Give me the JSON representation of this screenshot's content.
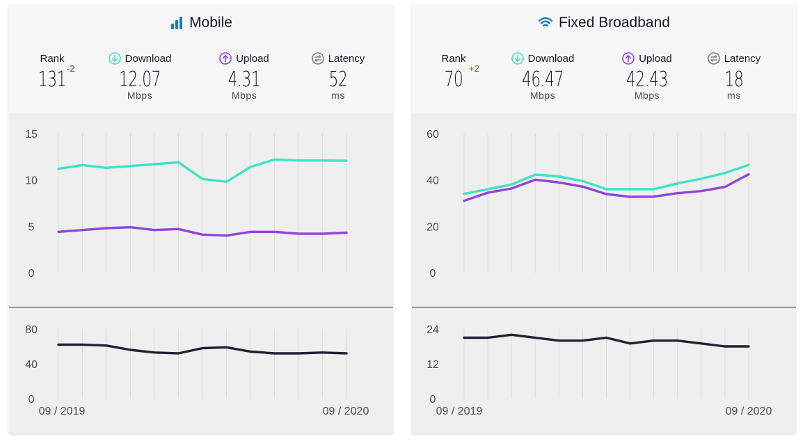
{
  "colors": {
    "download": "#3ee3c4",
    "upload": "#9344d8",
    "latency": "#1f2134",
    "rank_down": "#d2093c",
    "rank_up": "#3e7d1c",
    "grid": "#dcdcdc",
    "tick": "#4a4a58",
    "mobile_icon": "#1a78c2",
    "broadband_icon": "#1a78c2"
  },
  "panels": {
    "mobile": {
      "title": "Mobile",
      "icon": "signal-bars-icon",
      "rank_label": "Rank",
      "rank": "131",
      "rank_change": "-2",
      "download_label": "Download",
      "download_value": "12.07",
      "download_unit": "Mbps",
      "upload_label": "Upload",
      "upload_value": "4.31",
      "upload_unit": "Mbps",
      "latency_label": "Latency",
      "latency_value": "52",
      "latency_unit": "ms",
      "x_start_label": "09 / 2019",
      "x_end_label": "09 / 2020"
    },
    "broadband": {
      "title": "Fixed Broadband",
      "icon": "wifi-icon",
      "rank_label": "Rank",
      "rank": "70",
      "rank_change": "+2",
      "download_label": "Download",
      "download_value": "46.47",
      "download_unit": "Mbps",
      "upload_label": "Upload",
      "upload_value": "42.43",
      "upload_unit": "Mbps",
      "latency_label": "Latency",
      "latency_value": "18",
      "latency_unit": "ms",
      "x_start_label": "09 / 2019",
      "x_end_label": "09 / 2020"
    }
  },
  "chart_data": [
    {
      "id": "mobile-speed",
      "type": "line",
      "x": [
        "09/2019",
        "10/2019",
        "11/2019",
        "12/2019",
        "01/2020",
        "02/2020",
        "03/2020",
        "04/2020",
        "05/2020",
        "06/2020",
        "07/2020",
        "08/2020",
        "09/2020"
      ],
      "ylim": [
        0,
        15
      ],
      "yticks": [
        0,
        5,
        10,
        15
      ],
      "series": [
        {
          "name": "Download",
          "values": [
            11.2,
            11.6,
            11.3,
            11.5,
            11.7,
            11.9,
            10.1,
            9.8,
            11.4,
            12.2,
            12.1,
            12.1,
            12.07
          ]
        },
        {
          "name": "Upload",
          "values": [
            4.4,
            4.6,
            4.8,
            4.9,
            4.6,
            4.7,
            4.1,
            4.0,
            4.4,
            4.4,
            4.2,
            4.2,
            4.31
          ]
        }
      ]
    },
    {
      "id": "mobile-latency",
      "type": "line",
      "x": [
        "09/2019",
        "10/2019",
        "11/2019",
        "12/2019",
        "01/2020",
        "02/2020",
        "03/2020",
        "04/2020",
        "05/2020",
        "06/2020",
        "07/2020",
        "08/2020",
        "09/2020"
      ],
      "ylim": [
        0,
        80
      ],
      "yticks": [
        0,
        40,
        80
      ],
      "series": [
        {
          "name": "Latency",
          "values": [
            62,
            62,
            61,
            56,
            53,
            52,
            58,
            59,
            54,
            52,
            52,
            53,
            52
          ]
        }
      ]
    },
    {
      "id": "broadband-speed",
      "type": "line",
      "x": [
        "09/2019",
        "10/2019",
        "11/2019",
        "12/2019",
        "01/2020",
        "02/2020",
        "03/2020",
        "04/2020",
        "05/2020",
        "06/2020",
        "07/2020",
        "08/2020",
        "09/2020"
      ],
      "ylim": [
        0,
        60
      ],
      "yticks": [
        0,
        20,
        40,
        60
      ],
      "series": [
        {
          "name": "Download",
          "values": [
            34,
            36,
            38,
            42.3,
            41.5,
            39.5,
            36,
            36,
            36,
            38.5,
            40.5,
            43,
            46.47
          ]
        },
        {
          "name": "Upload",
          "values": [
            31,
            34.5,
            36.3,
            40.1,
            38.9,
            37.1,
            33.9,
            32.7,
            32.8,
            34.3,
            35.2,
            37,
            42.43
          ]
        }
      ]
    },
    {
      "id": "broadband-latency",
      "type": "line",
      "x": [
        "09/2019",
        "10/2019",
        "11/2019",
        "12/2019",
        "01/2020",
        "02/2020",
        "03/2020",
        "04/2020",
        "05/2020",
        "06/2020",
        "07/2020",
        "08/2020",
        "09/2020"
      ],
      "ylim": [
        0,
        24
      ],
      "yticks": [
        0,
        12,
        24
      ],
      "series": [
        {
          "name": "Latency",
          "values": [
            21,
            21,
            22,
            21,
            20,
            20,
            21,
            19,
            20,
            20,
            19,
            18,
            18
          ]
        }
      ]
    }
  ]
}
